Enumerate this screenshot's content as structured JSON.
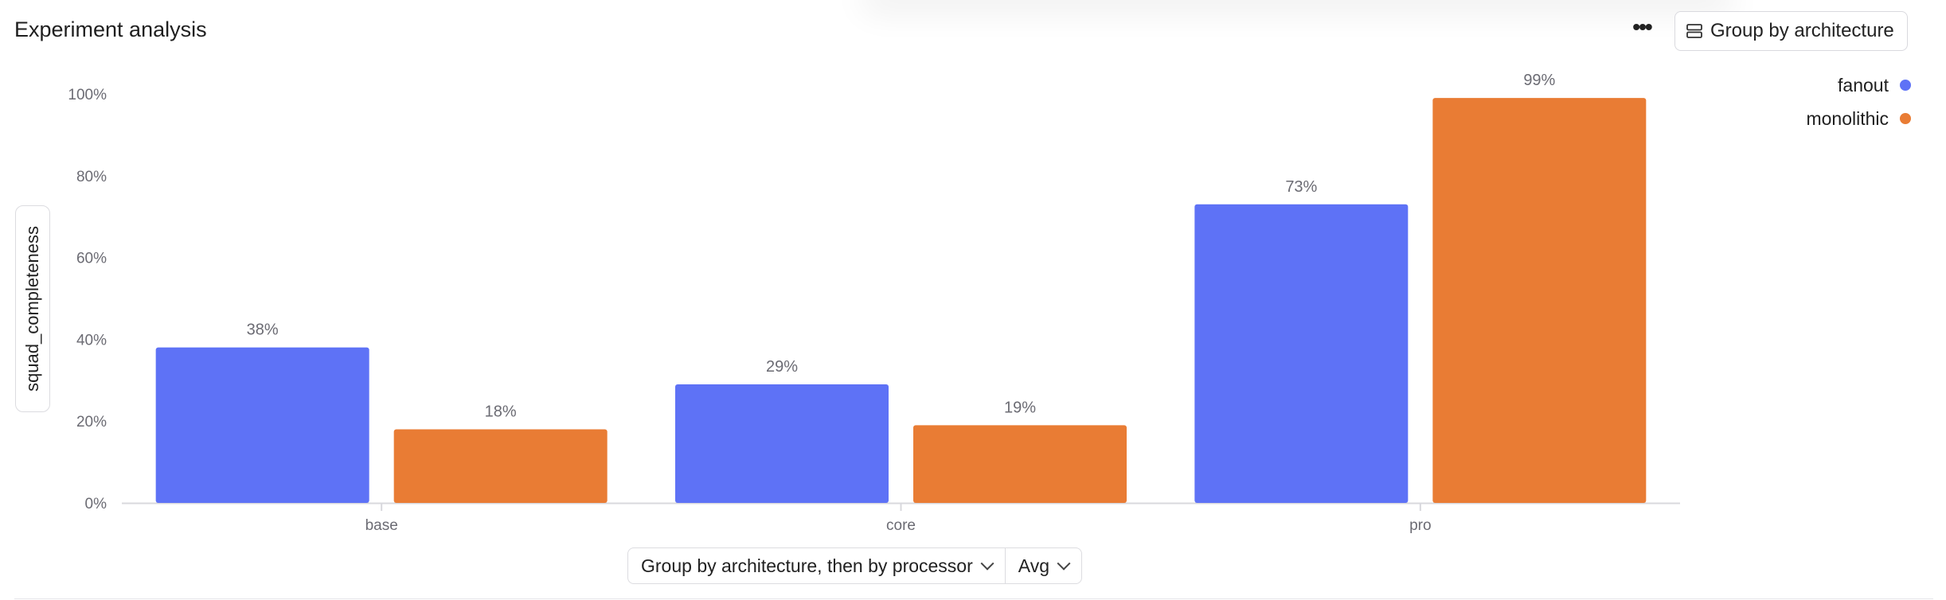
{
  "header": {
    "title": "Experiment analysis",
    "more_icon": "more-horizontal-icon",
    "group_button_label": "Group by architecture",
    "group_button_icon": "group-stack-icon"
  },
  "controls": {
    "grouping_label": "Group by architecture, then by processor",
    "aggregate_label": "Avg"
  },
  "colors": {
    "fanout": "#5e72f6",
    "monolithic": "#e97c34",
    "axis": "#d8d8dd",
    "tick_text": "#6b6b73"
  },
  "chart_data": {
    "type": "bar",
    "title": "",
    "xlabel": "",
    "ylabel": "squad_completeness",
    "categories": [
      "base",
      "core",
      "pro"
    ],
    "series": [
      {
        "name": "fanout",
        "values": [
          38,
          29,
          73
        ],
        "labels": [
          "38%",
          "29%",
          "73%"
        ]
      },
      {
        "name": "monolithic",
        "values": [
          18,
          19,
          99
        ],
        "labels": [
          "18%",
          "19%",
          "99%"
        ]
      }
    ],
    "ylim": [
      0,
      100
    ],
    "yticks": [
      0,
      20,
      40,
      60,
      80,
      100
    ],
    "ytick_labels": [
      "0%",
      "20%",
      "40%",
      "60%",
      "80%",
      "100%"
    ],
    "grid": false,
    "legend": "top-right"
  }
}
